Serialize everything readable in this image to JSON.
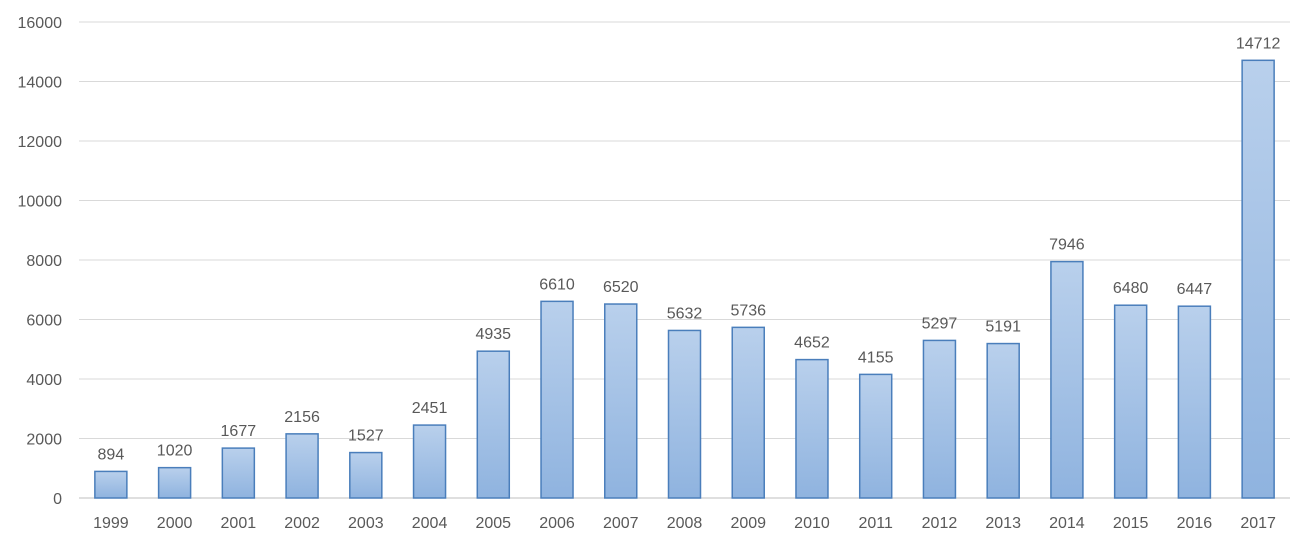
{
  "colors": {
    "bar_fill_top": "#b9d0ec",
    "bar_fill_bottom": "#8fb3df",
    "bar_stroke": "#4a7ebb",
    "grid": "#d9d9d9",
    "text": "#595959"
  },
  "chart_data": {
    "type": "bar",
    "title": "",
    "xlabel": "",
    "ylabel": "",
    "categories": [
      "1999",
      "2000",
      "2001",
      "2002",
      "2003",
      "2004",
      "2005",
      "2006",
      "2007",
      "2008",
      "2009",
      "2010",
      "2011",
      "2012",
      "2013",
      "2014",
      "2015",
      "2016",
      "2017"
    ],
    "values": [
      894,
      1020,
      1677,
      2156,
      1527,
      2451,
      4935,
      6610,
      6520,
      5632,
      5736,
      4652,
      4155,
      5297,
      5191,
      7946,
      6480,
      6447,
      14712
    ],
    "ylim": [
      0,
      16000
    ],
    "yticks": [
      0,
      2000,
      4000,
      6000,
      8000,
      10000,
      12000,
      14000,
      16000
    ],
    "grid": true,
    "legend": "none",
    "data_labels": true
  }
}
